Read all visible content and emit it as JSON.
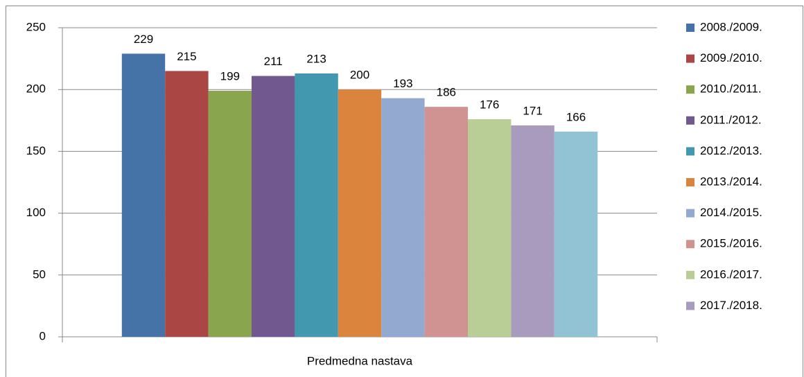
{
  "chart_data": {
    "type": "bar",
    "categories": [
      "Predmedna nastava"
    ],
    "series": [
      {
        "name": "2008./2009.",
        "color": "#4572a7",
        "values": [
          229
        ]
      },
      {
        "name": "2009./2010.",
        "color": "#aa4643",
        "values": [
          215
        ]
      },
      {
        "name": "2010./2011.",
        "color": "#89a54e",
        "values": [
          199
        ]
      },
      {
        "name": "2011./2012.",
        "color": "#71588f",
        "values": [
          211
        ]
      },
      {
        "name": "2012./2013.",
        "color": "#4198af",
        "values": [
          213
        ]
      },
      {
        "name": "2013./2014.",
        "color": "#db843d",
        "values": [
          200
        ]
      },
      {
        "name": "2014./2015.",
        "color": "#93a9cf",
        "values": [
          193
        ]
      },
      {
        "name": "2015./2016.",
        "color": "#d19392",
        "values": [
          186
        ]
      },
      {
        "name": "2016./2017.",
        "color": "#b9cd96",
        "values": [
          176
        ]
      },
      {
        "name": "2017./2018.",
        "color": "#a99bbd",
        "values": [
          171
        ]
      },
      {
        "name": null,
        "color": "#92c3d4",
        "values": [
          166
        ]
      }
    ],
    "ylim": [
      0,
      250
    ],
    "yticks": [
      0,
      50,
      100,
      150,
      200,
      250
    ],
    "grid": true,
    "legend": "right"
  }
}
